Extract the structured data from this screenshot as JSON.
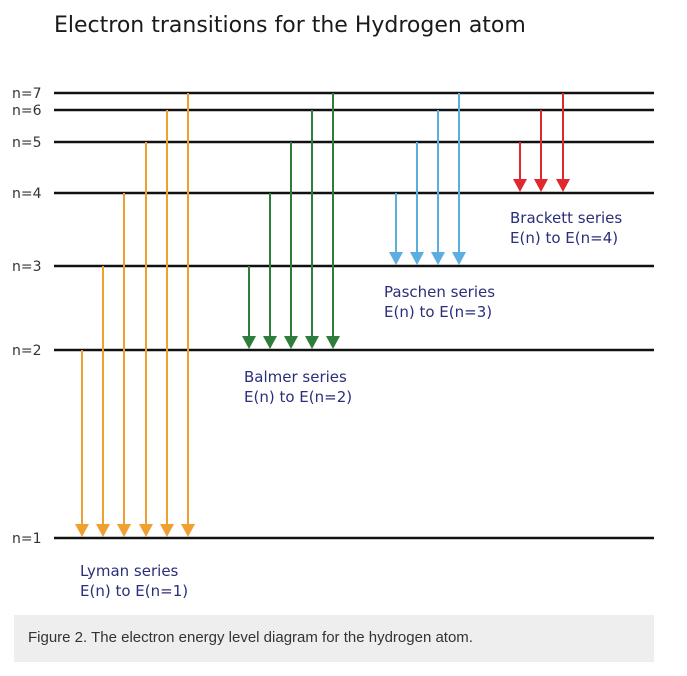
{
  "title": "Electron transitions for the Hydrogen atom",
  "levels": [
    {
      "label": "n=1",
      "n": 1
    },
    {
      "label": "n=2",
      "n": 2
    },
    {
      "label": "n=3",
      "n": 3
    },
    {
      "label": "n=4",
      "n": 4
    },
    {
      "label": "n=5",
      "n": 5
    },
    {
      "label": "n=6",
      "n": 6
    },
    {
      "label": "n=7",
      "n": 7
    }
  ],
  "series": [
    {
      "key": "lyman",
      "name": "Lyman series",
      "subtitle": "E(n) to E(n=1)",
      "final_n": 1,
      "from_n": [
        2,
        3,
        4,
        5,
        6,
        7
      ],
      "color": "#f0a030"
    },
    {
      "key": "balmer",
      "name": "Balmer series",
      "subtitle": "E(n) to E(n=2)",
      "final_n": 2,
      "from_n": [
        3,
        4,
        5,
        6,
        7
      ],
      "color": "#2e7d3a"
    },
    {
      "key": "paschen",
      "name": "Paschen series",
      "subtitle": "E(n) to E(n=3)",
      "final_n": 3,
      "from_n": [
        4,
        5,
        6,
        7
      ],
      "color": "#5aaee0"
    },
    {
      "key": "brackett",
      "name": "Brackett series",
      "subtitle": "E(n) to E(n=4)",
      "final_n": 4,
      "from_n": [
        5,
        6,
        7
      ],
      "color": "#e0282e"
    }
  ],
  "caption": "Figure 2. The electron energy level diagram for the hydrogen atom."
}
